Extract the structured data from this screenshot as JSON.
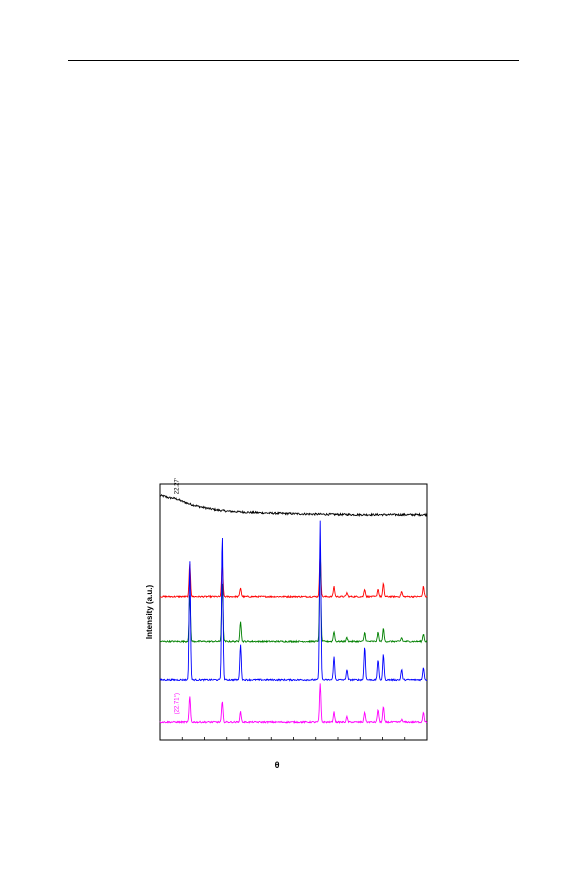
{
  "chart_data": {
    "type": "line",
    "xlabel": "θ",
    "ylabel": "Intensity (a.u.)",
    "xlim": [
      5,
      65
    ],
    "x_minor_ticks_step": 5,
    "y_ticks": false,
    "legend": "none",
    "annotations": [
      {
        "text": "22.27°",
        "series": "black",
        "x": 8.0
      },
      {
        "text": "(22.71°)",
        "series": "magenta",
        "x": 8.0
      }
    ],
    "peaks_2theta": [
      11.7,
      19.0,
      23.1,
      41.0,
      44.1,
      47.0,
      51.0,
      54.0,
      55.2,
      59.3,
      64.2
    ],
    "series": [
      {
        "color": "#000000",
        "offset": 0.88,
        "kind": "amorphous",
        "x": [
          5,
          6,
          7,
          8,
          9,
          10,
          12,
          14,
          16,
          18,
          20,
          25,
          30,
          35,
          40,
          45,
          50,
          55,
          60,
          65
        ],
        "values": [
          0.075,
          0.072,
          0.066,
          0.065,
          0.06,
          0.052,
          0.04,
          0.031,
          0.024,
          0.018,
          0.014,
          0.009,
          0.006,
          0.004,
          0.002,
          0.001,
          0.0,
          0.0,
          0.0,
          0.0
        ]
      },
      {
        "color": "#ff0000",
        "offset": 0.56,
        "kind": "crystalline",
        "noise": 0.003,
        "peak_heights": [
          0.13,
          0.13,
          0.035,
          0.17,
          0.04,
          0.015,
          0.03,
          0.03,
          0.05,
          0.02,
          0.04
        ]
      },
      {
        "color": "#008000",
        "offset": 0.385,
        "kind": "crystalline",
        "noise": 0.003,
        "peak_heights": [
          0.18,
          0.23,
          0.08,
          0.33,
          0.04,
          0.015,
          0.035,
          0.035,
          0.05,
          0.015,
          0.03
        ]
      },
      {
        "color": "#0000ff",
        "offset": 0.235,
        "kind": "crystalline",
        "noise": 0.003,
        "peak_heights": [
          0.47,
          0.57,
          0.14,
          0.62,
          0.09,
          0.04,
          0.13,
          0.08,
          0.1,
          0.04,
          0.05
        ]
      },
      {
        "color": "#ff00ff",
        "offset": 0.07,
        "kind": "crystalline",
        "noise": 0.003,
        "peak_heights": [
          0.1,
          0.08,
          0.04,
          0.15,
          0.04,
          0.02,
          0.04,
          0.05,
          0.06,
          0.01,
          0.04
        ]
      }
    ]
  }
}
